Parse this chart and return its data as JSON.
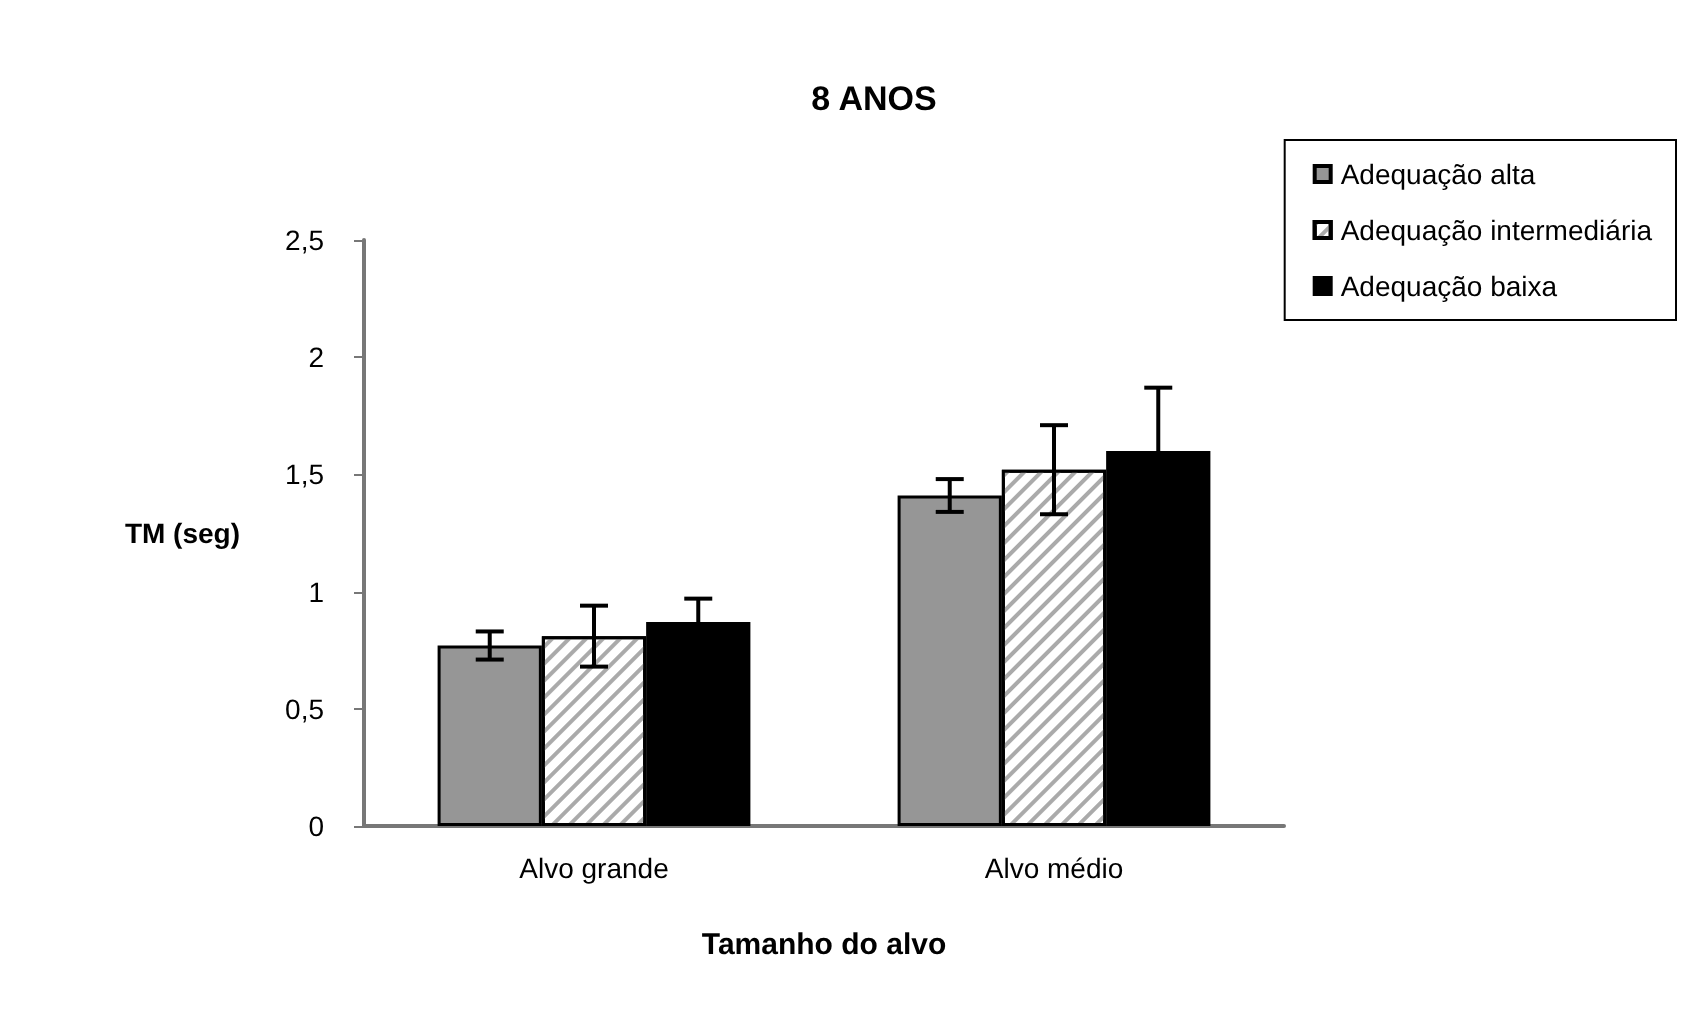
{
  "chart_data": {
    "type": "bar",
    "title": "8 ANOS",
    "xlabel": "Tamanho do alvo",
    "ylabel": "TM (seg)",
    "categories": [
      "Alvo grande",
      "Alvo médio"
    ],
    "series": [
      {
        "name": "Adequação alta",
        "color": "#969696",
        "values": [
          0.77,
          1.41
        ],
        "errors": [
          0.06,
          0.07
        ]
      },
      {
        "name": "Adequação intermediária",
        "color": "#ffffff",
        "values": [
          0.81,
          1.52
        ],
        "errors": [
          0.13,
          0.19
        ]
      },
      {
        "name": "Adequação baixa",
        "color": "#000000",
        "values": [
          0.87,
          1.6
        ],
        "errors": [
          0.1,
          0.27
        ]
      }
    ],
    "ylim": [
      0,
      2.5
    ],
    "yticks": [
      0,
      {
        "value": 0.5,
        "label": "0,5"
      },
      1,
      {
        "value": 1.5,
        "label": "1,5"
      },
      2,
      {
        "value": 2.5,
        "label": "2,5"
      }
    ],
    "grid": false,
    "legend": "top right"
  }
}
